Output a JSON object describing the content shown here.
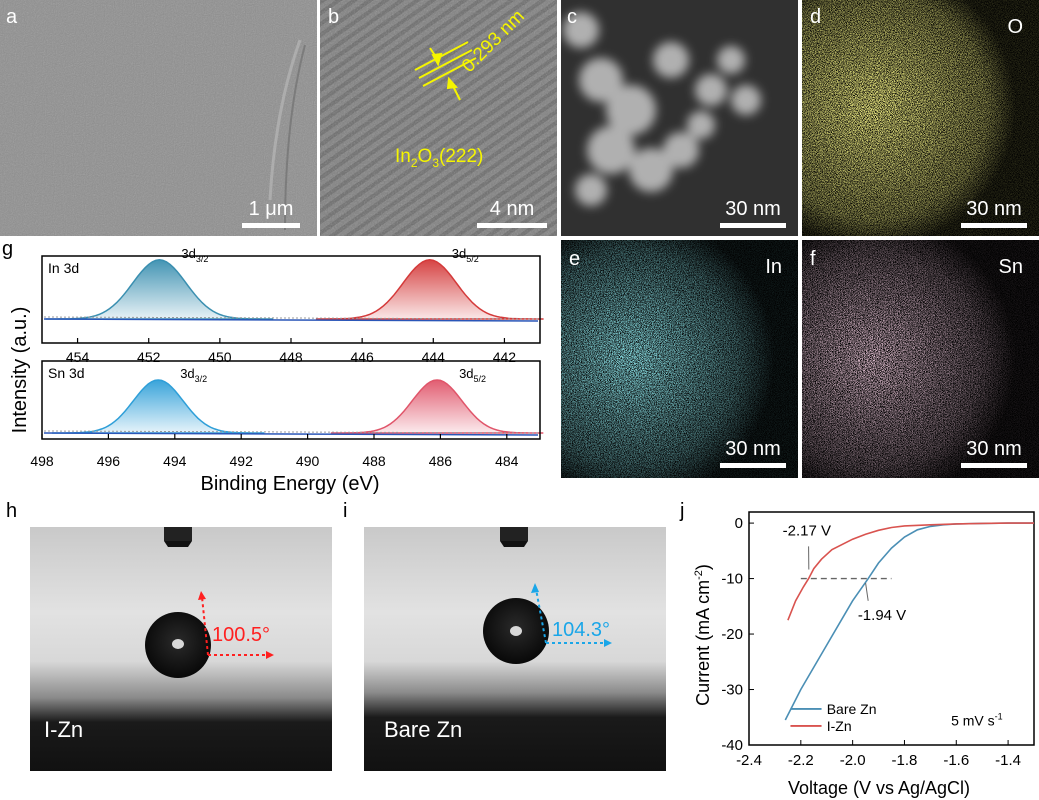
{
  "panels": {
    "a": {
      "label": "a",
      "scale": "1 μm",
      "bg": "#8c8c8c"
    },
    "b": {
      "label": "b",
      "scale": "4 nm",
      "bg": "#767676",
      "lattice": "0.293 nm",
      "phase_main": "In",
      "phase_sub1": "2",
      "phase_mid": "O",
      "phase_sub2": "3",
      "phase_tail": "(222)"
    },
    "c": {
      "label": "c",
      "scale": "30 nm",
      "bg": "#2e2e2e"
    },
    "d": {
      "label": "d",
      "scale": "30 nm",
      "element": "O",
      "color": "#d7d03a"
    },
    "e": {
      "label": "e",
      "scale": "30 nm",
      "element": "In",
      "color": "#3fb8c3"
    },
    "f": {
      "label": "f",
      "scale": "30 nm",
      "element": "Sn",
      "color": "#c78aa8"
    },
    "g": {
      "label": "g"
    },
    "h": {
      "label": "h",
      "sample": "I-Zn",
      "angle": "100.5°",
      "angle_color": "#ff2020"
    },
    "i": {
      "label": "i",
      "sample": "Bare Zn",
      "angle": "104.3°",
      "angle_color": "#1aa6e8"
    },
    "j": {
      "label": "j"
    }
  },
  "chart_data": [
    {
      "type": "area",
      "panel": "g",
      "ylabel": "Intensity (a.u.)",
      "xlabel": "Binding Energy (eV)",
      "subplots": [
        {
          "name": "In 3d",
          "xlim": [
            455,
            441
          ],
          "xticks": [
            454,
            452,
            450,
            448,
            446,
            444,
            442
          ],
          "peaks": [
            {
              "label_main": "3d",
              "label_sub": "3/2",
              "center": 451.7,
              "color": "#3a8fb0"
            },
            {
              "label_main": "3d",
              "label_sub": "5/2",
              "center": 444.1,
              "color": "#d43a3a"
            }
          ]
        },
        {
          "name": "Sn 3d",
          "xlim": [
            498,
            483
          ],
          "xticks": [
            498,
            496,
            494,
            492,
            490,
            488,
            486,
            484
          ],
          "peaks": [
            {
              "label_main": "3d",
              "label_sub": "3/2",
              "center": 494.5,
              "color": "#2f9fd8"
            },
            {
              "label_main": "3d",
              "label_sub": "5/2",
              "center": 486.1,
              "color": "#e0556a"
            }
          ]
        }
      ]
    },
    {
      "type": "line",
      "panel": "j",
      "xlabel": "Voltage (V vs Ag/AgCl)",
      "ylabel_main": "Current (mA cm",
      "ylabel_sup": "-2",
      "ylabel_tail": ")",
      "xlim": [
        -2.4,
        -1.3
      ],
      "ylim": [
        -40,
        2
      ],
      "xticks": [
        -2.4,
        -2.2,
        -2.0,
        -1.8,
        -1.6,
        -1.4
      ],
      "yticks": [
        0,
        -10,
        -20,
        -30,
        -40
      ],
      "annotations": [
        "-2.17 V",
        "-1.94 V"
      ],
      "note": "5 mV s",
      "note_sup": "-1",
      "series": [
        {
          "name": "Bare Zn",
          "color": "#4b8fb5",
          "x": [
            -2.26,
            -2.2,
            -2.1,
            -2.0,
            -1.94,
            -1.9,
            -1.85,
            -1.8,
            -1.75,
            -1.7,
            -1.65,
            -1.6,
            -1.5,
            -1.4,
            -1.3
          ],
          "y": [
            -35.5,
            -30,
            -22,
            -14,
            -10,
            -7.2,
            -4.5,
            -2.5,
            -1.2,
            -0.6,
            -0.3,
            -0.15,
            -0.05,
            0,
            0
          ]
        },
        {
          "name": "I-Zn",
          "color": "#d9534f",
          "x": [
            -2.25,
            -2.22,
            -2.19,
            -2.17,
            -2.15,
            -2.12,
            -2.08,
            -2.0,
            -1.95,
            -1.9,
            -1.85,
            -1.8,
            -1.7,
            -1.6,
            -1.5,
            -1.4,
            -1.3
          ],
          "y": [
            -17.5,
            -14,
            -11.5,
            -10,
            -8.2,
            -6.5,
            -4.8,
            -2.9,
            -2,
            -1.3,
            -0.8,
            -0.5,
            -0.3,
            -0.15,
            -0.05,
            0,
            0
          ]
        }
      ]
    }
  ]
}
